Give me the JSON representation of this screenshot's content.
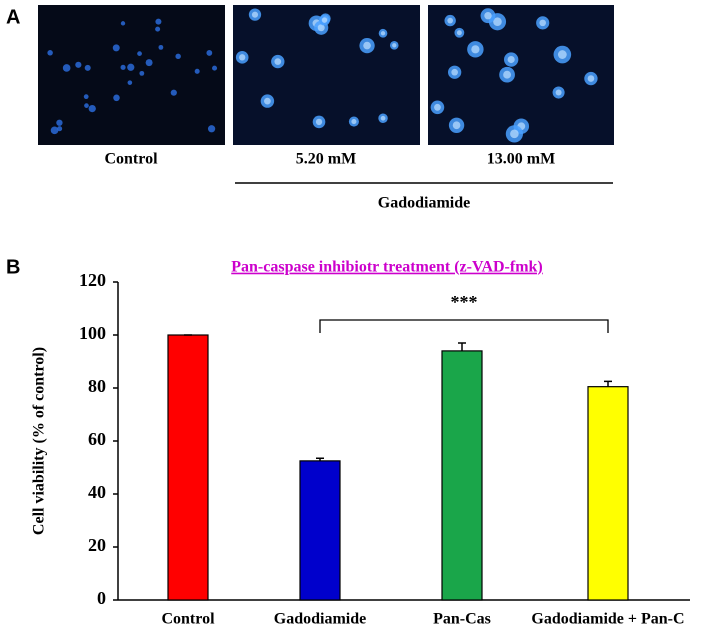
{
  "panel_a": {
    "label": "A",
    "captions": [
      "Control",
      "5.20 mM",
      "13.00 mM"
    ],
    "group_label": "Gadodiamide"
  },
  "panel_b": {
    "label": "B"
  },
  "chart_data": {
    "type": "bar",
    "title": "Pan-caspase inhibiotr treatment (z-VAD-fmk)",
    "y_label": "Cell viability (% of control)",
    "categories": [
      "Control",
      "Gadodiamide",
      "Pan-Cas",
      "Gadodiamide + Pan-C"
    ],
    "values": [
      100,
      52.5,
      94,
      80.5
    ],
    "errors": [
      0,
      1,
      3,
      2
    ],
    "colors": [
      "#ff0000",
      "#0000cc",
      "#1aa64a",
      "#ffff00"
    ],
    "ylim": [
      0,
      120
    ],
    "yticks": [
      0,
      20,
      40,
      60,
      80,
      100,
      120
    ],
    "annotation": {
      "text": "***",
      "between": [
        "Gadodiamide",
        "Gadodiamide + Pan-C"
      ]
    }
  }
}
